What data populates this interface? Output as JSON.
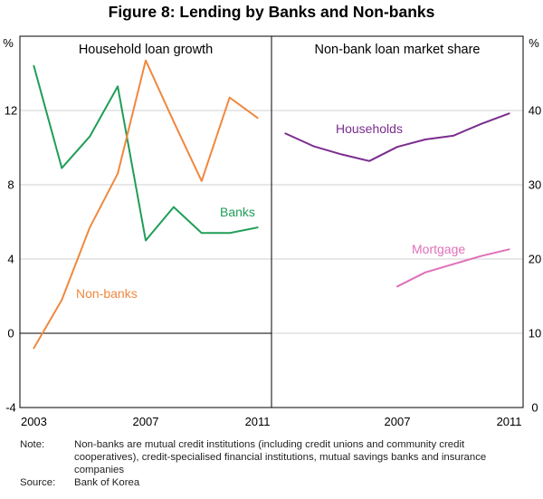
{
  "chart_data": [
    {
      "type": "line",
      "title": "Figure 8: Lending by Banks and Non-banks",
      "panel_title": "Household loan growth",
      "ylabel": "%",
      "ylim": [
        -4,
        16
      ],
      "yticks": [
        -4,
        0,
        4,
        8,
        12
      ],
      "xlim": [
        2002.5,
        2011.5
      ],
      "xticks": [
        2003,
        2007,
        2011
      ],
      "grid": true,
      "series": [
        {
          "name": "Banks",
          "color": "#1f9e57",
          "x": [
            2003,
            2004,
            2005,
            2006,
            2007,
            2008,
            2009,
            2010,
            2011
          ],
          "values": [
            14.4,
            8.9,
            10.6,
            13.3,
            5.0,
            6.8,
            5.4,
            5.4,
            5.7
          ]
        },
        {
          "name": "Non-banks",
          "color": "#f0883e",
          "x": [
            2003,
            2004,
            2005,
            2006,
            2007,
            2008,
            2009,
            2010,
            2011
          ],
          "values": [
            -0.8,
            1.8,
            5.7,
            8.6,
            14.7,
            11.4,
            8.2,
            12.7,
            11.6
          ]
        }
      ]
    },
    {
      "type": "line",
      "panel_title": "Non-bank loan market share",
      "ylabel": "%",
      "ylim": [
        0,
        50
      ],
      "yticks": [
        0,
        10,
        20,
        30,
        40
      ],
      "xlim": [
        2002.5,
        2011.5
      ],
      "xticks": [
        2007,
        2011
      ],
      "grid": true,
      "series": [
        {
          "name": "Households",
          "color": "#7b2d8e",
          "x": [
            2003,
            2004,
            2005,
            2006,
            2007,
            2008,
            2009,
            2010,
            2011
          ],
          "values": [
            36.9,
            35.2,
            34.1,
            33.2,
            35.1,
            36.1,
            36.6,
            38.2,
            39.6
          ]
        },
        {
          "name": "Mortgage",
          "color": "#e070b8",
          "x": [
            2007,
            2008,
            2009,
            2010,
            2011
          ],
          "values": [
            16.3,
            18.2,
            19.3,
            20.4,
            21.3
          ]
        }
      ]
    }
  ],
  "notes": {
    "note_label": "Note:",
    "note_text": "Non-banks are mutual credit institutions (including credit unions and community credit cooperatives), credit-specialised financial institutions, mutual savings banks and insurance companies",
    "source_label": "Source:",
    "source_text": "Bank of Korea"
  }
}
